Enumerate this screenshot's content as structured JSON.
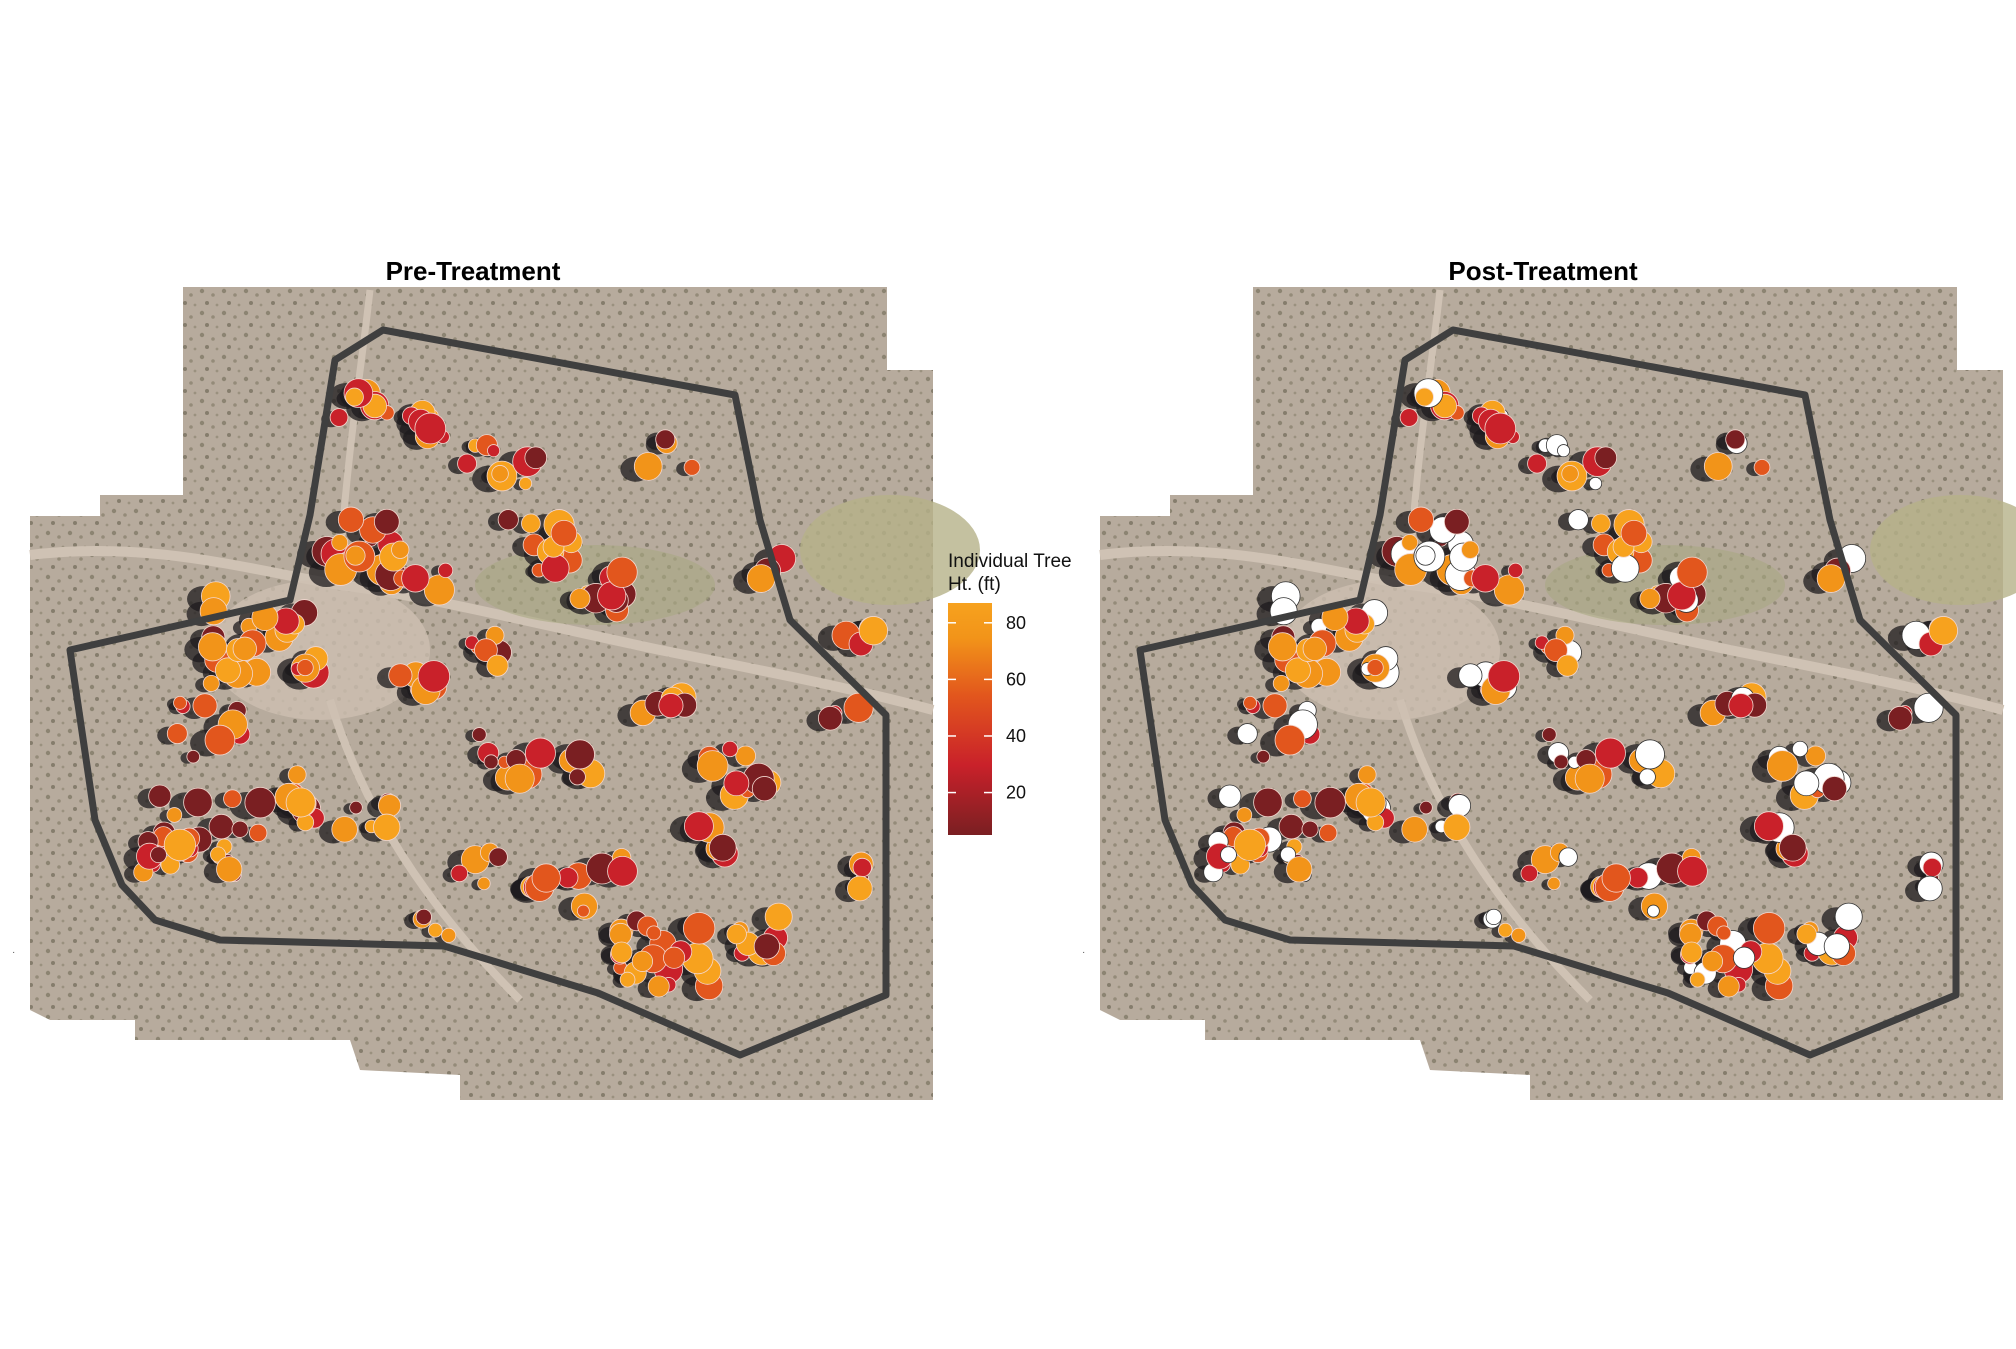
{
  "figure": {
    "left_panel": {
      "title": "Pre-Treatment"
    },
    "right_panel": {
      "title": "Post-Treatment"
    },
    "legend": {
      "title_line1": "Individual Tree",
      "title_line2": "Ht. (ft)",
      "ticks": [
        20,
        40,
        60,
        80
      ],
      "range": [
        5,
        87
      ],
      "gradient_colors": [
        "#7a1f22",
        "#c9212a",
        "#e2561d",
        "#f29419",
        "#f7a21e"
      ]
    },
    "colors": {
      "boundary": "#3f3f3f",
      "removed_tree": "#ffffff",
      "bare_ground": "#b9ac9f"
    }
  }
}
